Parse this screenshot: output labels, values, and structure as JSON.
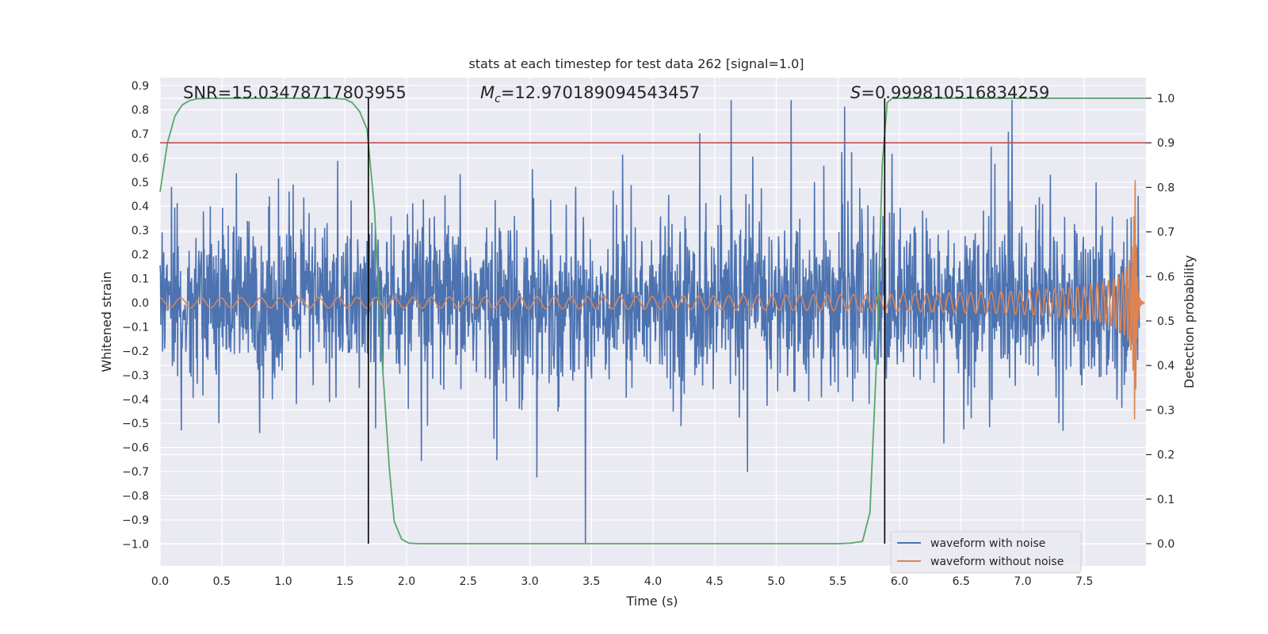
{
  "chart_data": {
    "type": "line",
    "title": "stats at each timestep for test data 262 [signal=1.0]",
    "xlabel": "Time (s)",
    "ylabel": "Whitened strain",
    "ylabel_right": "Detection probability",
    "xlim": [
      0.0,
      8.0
    ],
    "ylim": [
      -1.09,
      0.93
    ],
    "ylim_right": [
      -0.05,
      1.045
    ],
    "x_ticks": [
      "0.0",
      "0.5",
      "1.0",
      "1.5",
      "2.0",
      "2.5",
      "3.0",
      "3.5",
      "4.0",
      "4.5",
      "5.0",
      "5.5",
      "6.0",
      "6.5",
      "7.0",
      "7.5"
    ],
    "y_ticks": [
      "0.9",
      "0.8",
      "0.7",
      "0.6",
      "0.5",
      "0.4",
      "0.3",
      "0.2",
      "0.1",
      "0.0",
      "−0.1",
      "−0.2",
      "−0.3",
      "−0.4",
      "−0.5",
      "−0.6",
      "−0.7",
      "−0.8",
      "−0.9",
      "−1.0"
    ],
    "y_right_ticks": [
      "1.0",
      "0.9",
      "0.8",
      "0.7",
      "0.6",
      "0.5",
      "0.4",
      "0.3",
      "0.2",
      "0.1",
      "0.0"
    ],
    "annotations": {
      "snr": "SNR=15.03478717803955",
      "mc_symbol": "M",
      "mc_sub": "c",
      "mc_value": "=12.970189094543457",
      "s_symbol": "S",
      "s_value": "=0.999810516834259"
    },
    "threshold_probability": 0.9,
    "vertical_lines_x": [
      1.69,
      5.88
    ],
    "series": [
      {
        "name": "waveform with noise",
        "color": "#4c72b0",
        "description_values": "dense noise, peaks ~+0.84 to -1.0"
      },
      {
        "name": "waveform without noise",
        "color": "#dd8452",
        "chirp_amplitude_start": 0.02,
        "chirp_amplitude_peak": 0.66,
        "chirp_peak_time": 7.91
      },
      {
        "name": "",
        "color": "#55a868",
        "axis": "right",
        "x": [
          0.0,
          0.06,
          0.12,
          0.18,
          0.24,
          0.3,
          0.4,
          0.6,
          0.8,
          1.0,
          1.2,
          1.4,
          1.5,
          1.56,
          1.62,
          1.68,
          1.74,
          1.8,
          1.86,
          1.9,
          1.96,
          2.02,
          2.1,
          2.3,
          3.0,
          4.0,
          5.0,
          5.5,
          5.6,
          5.7,
          5.76,
          5.82,
          5.86,
          5.9,
          5.94,
          6.0,
          6.5,
          7.0,
          7.5,
          8.0
        ],
        "y": [
          0.79,
          0.9,
          0.96,
          0.985,
          0.995,
          0.999,
          1.0,
          1.0,
          1.0,
          1.0,
          1.0,
          1.0,
          0.998,
          0.99,
          0.97,
          0.93,
          0.75,
          0.42,
          0.17,
          0.05,
          0.01,
          0.001,
          0.0,
          0.0,
          0.0,
          0.0,
          0.0,
          0.0,
          0.001,
          0.005,
          0.07,
          0.45,
          0.85,
          0.99,
          1.0,
          1.0,
          1.0,
          1.0,
          1.0,
          1.0
        ]
      }
    ],
    "legend_position": "lower-right"
  }
}
